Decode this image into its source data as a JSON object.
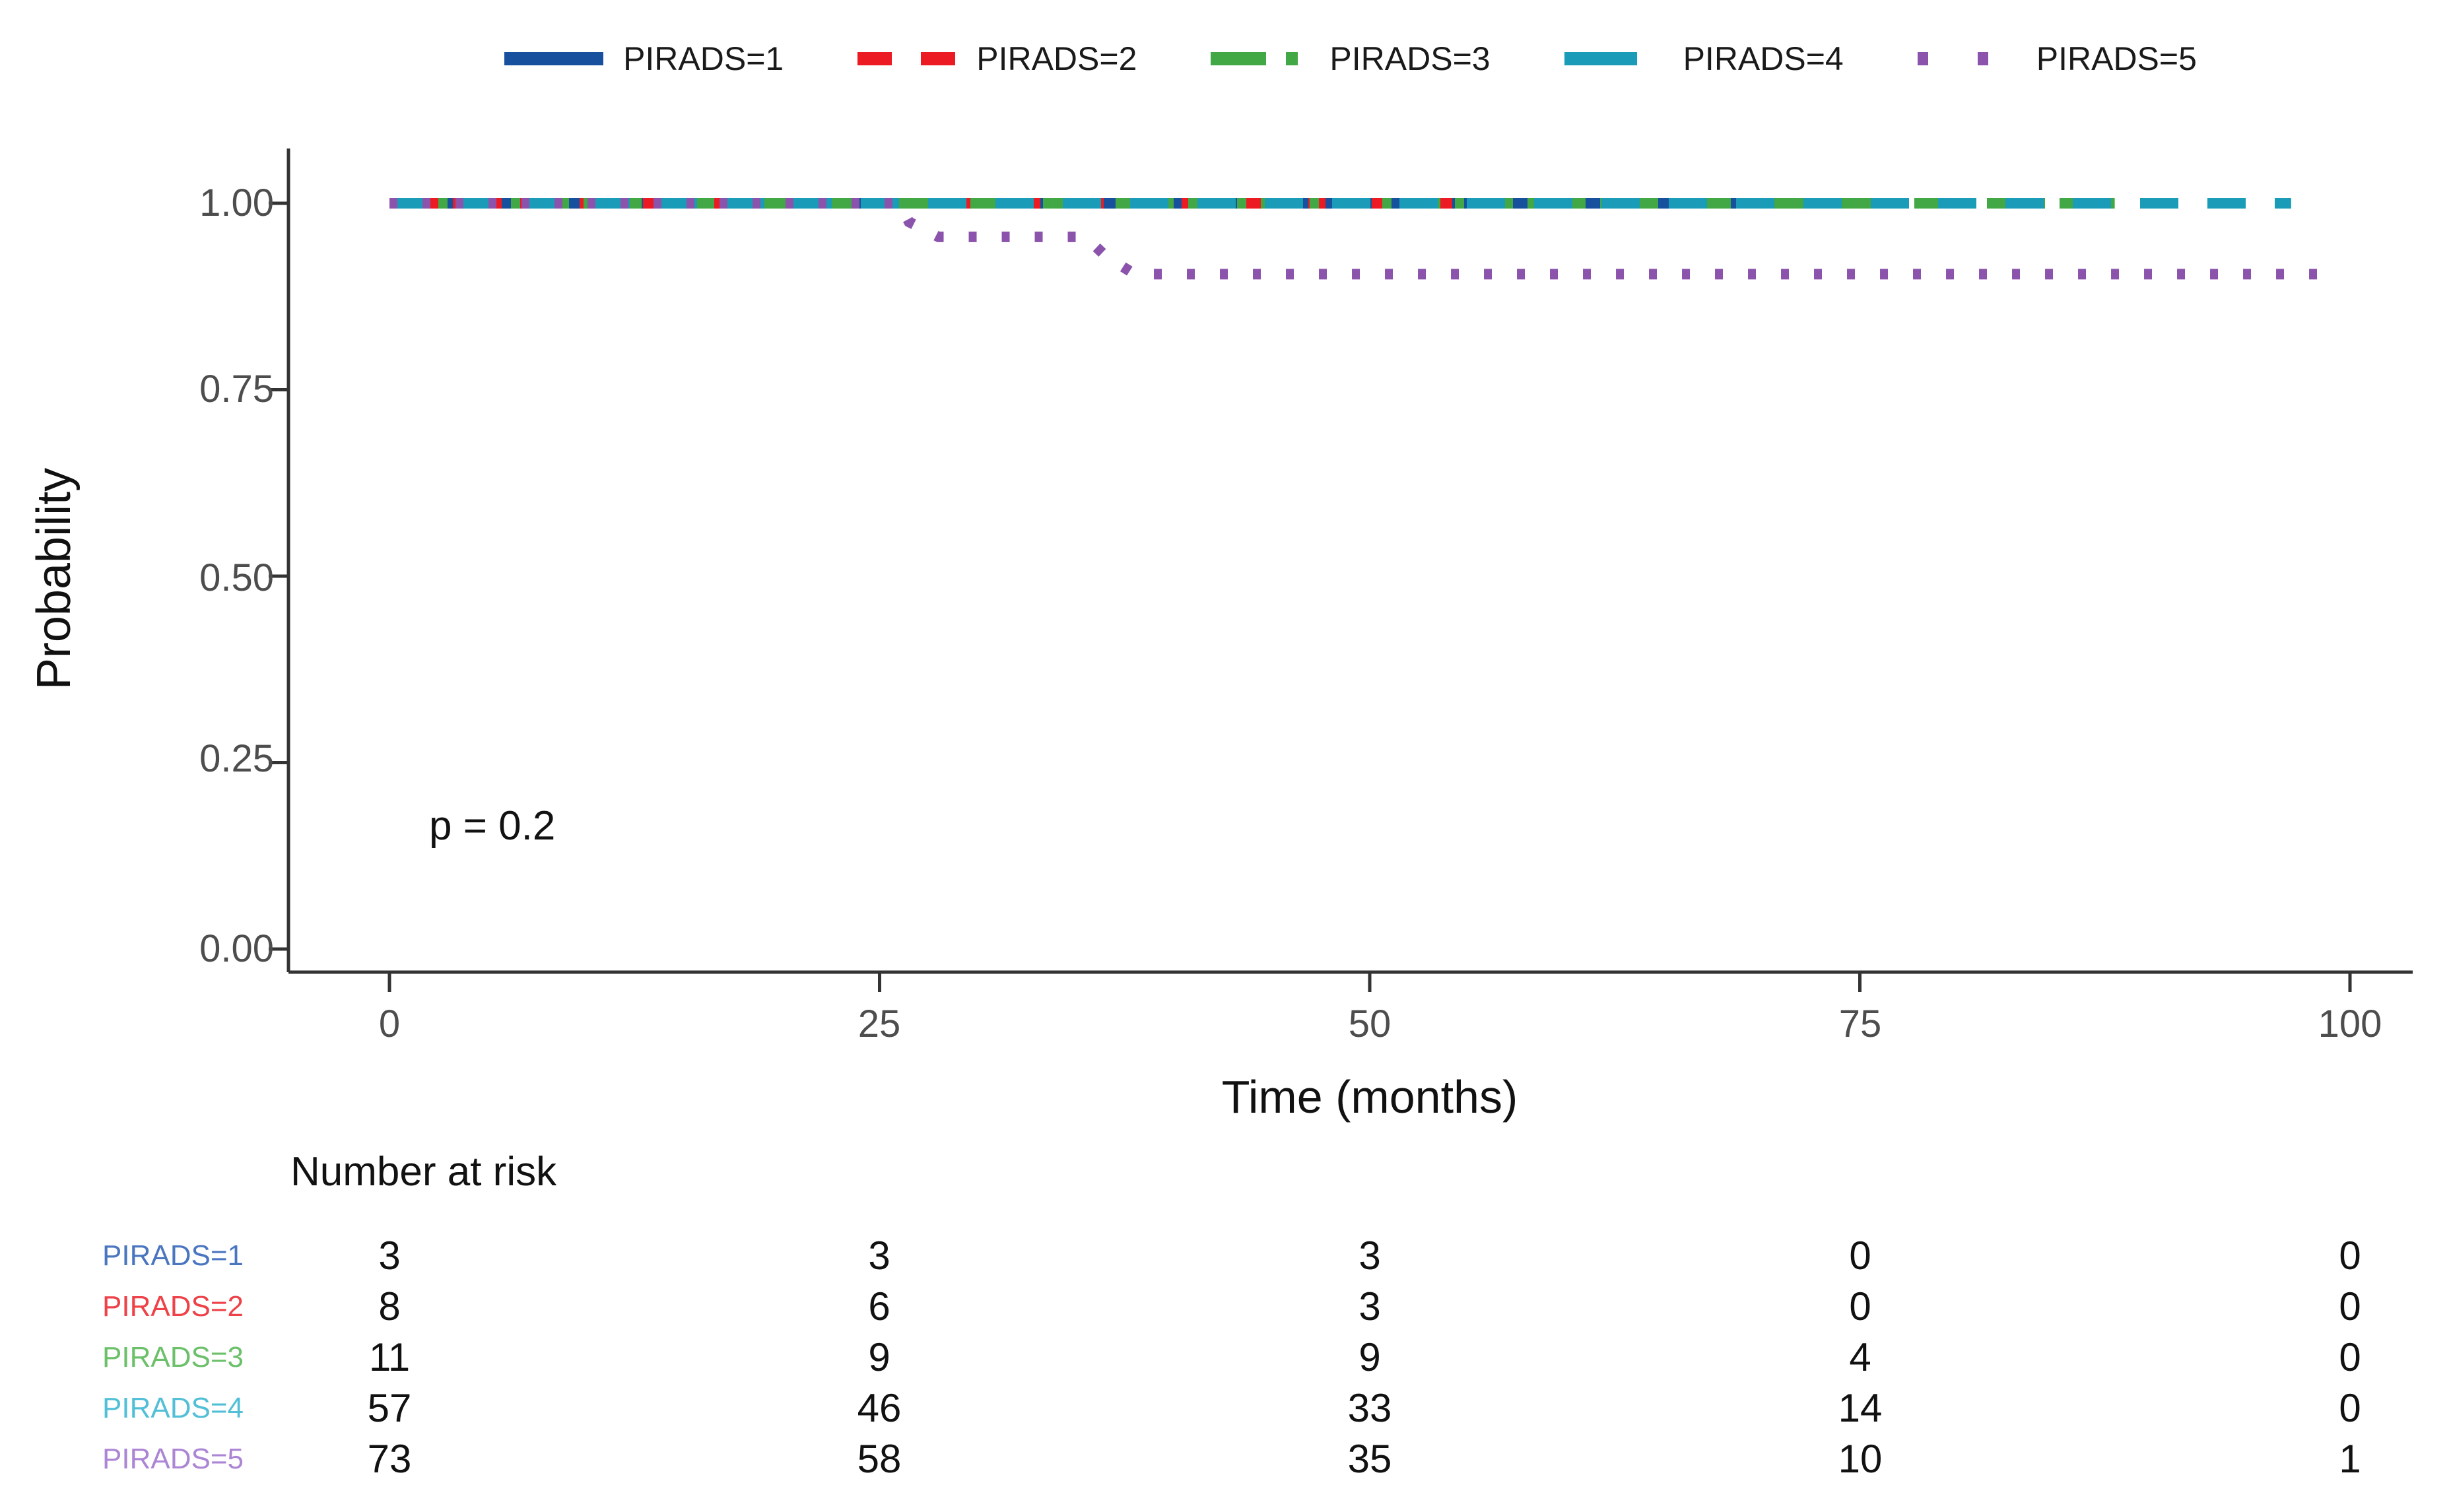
{
  "chart_data": {
    "type": "line",
    "subtype": "kaplan-meier-step",
    "title": "",
    "xlabel": "Time (months)",
    "ylabel": "Probability",
    "annotation": "p = 0.2",
    "legend_position": "top",
    "grid": false,
    "xlim": [
      0,
      100
    ],
    "ylim": [
      0,
      1
    ],
    "x_ticks": [
      0,
      25,
      50,
      75,
      100
    ],
    "y_ticks": [
      1.0,
      0.75,
      0.5,
      0.25,
      0.0
    ],
    "x_tick_labels": [
      "0",
      "25",
      "50",
      "75",
      "100"
    ],
    "y_tick_labels": [
      "1.00",
      "0.75",
      "0.50",
      "0.25",
      "0.00"
    ],
    "series": [
      {
        "name": "PIRADS=1",
        "color": "#17519E",
        "linetype": "solid",
        "points": [
          [
            0,
            1.0
          ],
          [
            73,
            1.0
          ]
        ]
      },
      {
        "name": "PIRADS=2",
        "color": "#EC1B23",
        "linetype": "dashed",
        "points": [
          [
            0,
            1.0
          ],
          [
            56,
            1.0
          ]
        ]
      },
      {
        "name": "PIRADS=3",
        "color": "#42A846",
        "linetype": "dashdot",
        "points": [
          [
            0,
            1.0
          ],
          [
            88,
            1.0
          ]
        ]
      },
      {
        "name": "PIRADS=4",
        "color": "#1A9CB9",
        "linetype": "longdash",
        "points": [
          [
            0,
            1.0
          ],
          [
            97,
            1.0
          ]
        ]
      },
      {
        "name": "PIRADS=5",
        "color": "#8B53AC",
        "linetype": "dotted",
        "points": [
          [
            0,
            1.0
          ],
          [
            26,
            1.0
          ],
          [
            26.5,
            0.975
          ],
          [
            28,
            0.955
          ],
          [
            35.5,
            0.955
          ],
          [
            36.5,
            0.93
          ],
          [
            38,
            0.905
          ],
          [
            99,
            0.905
          ]
        ]
      }
    ],
    "risk_table": {
      "title": "Number at risk",
      "time_points": [
        0,
        25,
        50,
        75,
        100
      ],
      "rows": [
        {
          "label": "PIRADS=1",
          "color": "#4A76C0",
          "values": [
            "3",
            "3",
            "3",
            "0",
            "0"
          ]
        },
        {
          "label": "PIRADS=2",
          "color": "#EE4148",
          "values": [
            "8",
            "6",
            "3",
            "0",
            "0"
          ]
        },
        {
          "label": "PIRADS=3",
          "color": "#6CC06A",
          "values": [
            "11",
            "9",
            "9",
            "4",
            "0"
          ]
        },
        {
          "label": "PIRADS=4",
          "color": "#52BFD7",
          "values": [
            "57",
            "46",
            "33",
            "14",
            "0"
          ]
        },
        {
          "label": "PIRADS=5",
          "color": "#AC85D4",
          "values": [
            "73",
            "58",
            "35",
            "10",
            "1"
          ]
        }
      ]
    }
  }
}
